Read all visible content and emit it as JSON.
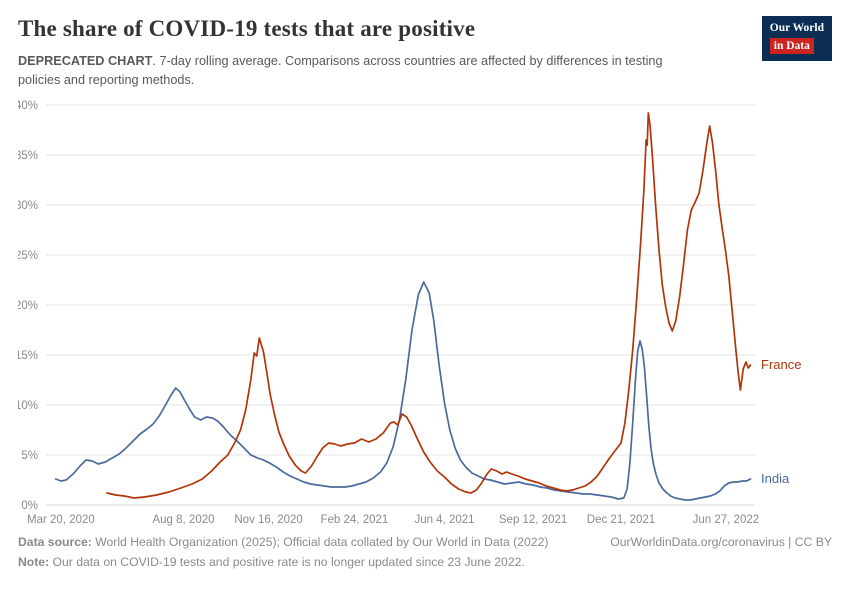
{
  "header": {
    "title": "The share of COVID-19 tests that are positive",
    "subtitle_bold": "DEPRECATED CHART",
    "subtitle_rest": ". 7-day rolling average. Comparisons across countries are affected by differences in testing policies and reporting methods.",
    "logo": {
      "line1": "Our World",
      "line2": "in Data",
      "bg_color": "#0d2e54",
      "accent_color": "#cb2421"
    }
  },
  "chart_data": {
    "type": "line",
    "title": "The share of COVID-19 tests that are positive",
    "subtitle": "7-day rolling average. Comparisons across countries are affected by differences in testing policies and reporting methods.",
    "ylim": [
      0,
      40
    ],
    "y_ticks": [
      0,
      5,
      10,
      15,
      20,
      25,
      30,
      35,
      40
    ],
    "y_tick_suffix": "%",
    "grid": true,
    "legend_position": "end-of-line-labels",
    "x_axis": {
      "ticks": [
        {
          "date": "2020-03-20",
          "label": "Mar 20, 2020",
          "pos": 0.021
        },
        {
          "date": "2020-08-08",
          "label": "Aug 8, 2020",
          "pos": 0.194
        },
        {
          "date": "2020-11-16",
          "label": "Nov 16, 2020",
          "pos": 0.314
        },
        {
          "date": "2021-02-24",
          "label": "Feb 24, 2021",
          "pos": 0.435
        },
        {
          "date": "2021-06-04",
          "label": "Jun 4, 2021",
          "pos": 0.562
        },
        {
          "date": "2021-09-12",
          "label": "Sep 12, 2021",
          "pos": 0.687
        },
        {
          "date": "2021-12-21",
          "label": "Dec 21, 2021",
          "pos": 0.811
        },
        {
          "date": "2022-06-27",
          "label": "Jun 27, 2022",
          "pos": 0.959
        }
      ]
    },
    "series": [
      {
        "name": "India",
        "color": "#4C6A9C",
        "points": [
          [
            "2020-03-14",
            2.6
          ],
          [
            "2020-03-20",
            2.4
          ],
          [
            "2020-03-26",
            2.5
          ],
          [
            "2020-04-03",
            3.1
          ],
          [
            "2020-04-11",
            3.9
          ],
          [
            "2020-04-18",
            4.5
          ],
          [
            "2020-04-25",
            4.4
          ],
          [
            "2020-05-02",
            4.1
          ],
          [
            "2020-05-10",
            4.3
          ],
          [
            "2020-05-18",
            4.7
          ],
          [
            "2020-05-26",
            5.1
          ],
          [
            "2020-06-03",
            5.7
          ],
          [
            "2020-06-11",
            6.4
          ],
          [
            "2020-06-19",
            7.1
          ],
          [
            "2020-06-27",
            7.6
          ],
          [
            "2020-07-04",
            8.1
          ],
          [
            "2020-07-11",
            8.9
          ],
          [
            "2020-07-17",
            9.8
          ],
          [
            "2020-07-24",
            10.9
          ],
          [
            "2020-07-30",
            11.7
          ],
          [
            "2020-08-04",
            11.3
          ],
          [
            "2020-08-09",
            10.5
          ],
          [
            "2020-08-15",
            9.6
          ],
          [
            "2020-08-21",
            8.8
          ],
          [
            "2020-08-28",
            8.5
          ],
          [
            "2020-09-04",
            8.8
          ],
          [
            "2020-09-11",
            8.7
          ],
          [
            "2020-09-17",
            8.4
          ],
          [
            "2020-09-24",
            7.8
          ],
          [
            "2020-10-02",
            7.0
          ],
          [
            "2020-10-10",
            6.4
          ],
          [
            "2020-10-18",
            5.7
          ],
          [
            "2020-10-26",
            5.0
          ],
          [
            "2020-11-03",
            4.7
          ],
          [
            "2020-11-10",
            4.5
          ],
          [
            "2020-11-17",
            4.2
          ],
          [
            "2020-11-25",
            3.8
          ],
          [
            "2020-12-03",
            3.3
          ],
          [
            "2020-12-11",
            2.9
          ],
          [
            "2020-12-19",
            2.6
          ],
          [
            "2020-12-27",
            2.3
          ],
          [
            "2021-01-04",
            2.1
          ],
          [
            "2021-01-12",
            2.0
          ],
          [
            "2021-01-20",
            1.9
          ],
          [
            "2021-01-28",
            1.8
          ],
          [
            "2021-02-05",
            1.8
          ],
          [
            "2021-02-13",
            1.8
          ],
          [
            "2021-02-21",
            1.9
          ],
          [
            "2021-03-01",
            2.1
          ],
          [
            "2021-03-09",
            2.3
          ],
          [
            "2021-03-17",
            2.7
          ],
          [
            "2021-03-25",
            3.3
          ],
          [
            "2021-04-01",
            4.2
          ],
          [
            "2021-04-08",
            5.8
          ],
          [
            "2021-04-15",
            8.5
          ],
          [
            "2021-04-22",
            12.5
          ],
          [
            "2021-04-29",
            17.5
          ],
          [
            "2021-05-06",
            21.0
          ],
          [
            "2021-05-12",
            22.3
          ],
          [
            "2021-05-18",
            21.2
          ],
          [
            "2021-05-23",
            18.5
          ],
          [
            "2021-05-29",
            14.0
          ],
          [
            "2021-06-04",
            10.2
          ],
          [
            "2021-06-10",
            7.5
          ],
          [
            "2021-06-16",
            5.7
          ],
          [
            "2021-06-22",
            4.5
          ],
          [
            "2021-06-28",
            3.8
          ],
          [
            "2021-07-05",
            3.2
          ],
          [
            "2021-07-12",
            2.9
          ],
          [
            "2021-07-19",
            2.6
          ],
          [
            "2021-07-26",
            2.5
          ],
          [
            "2021-08-03",
            2.3
          ],
          [
            "2021-08-11",
            2.1
          ],
          [
            "2021-08-19",
            2.2
          ],
          [
            "2021-08-27",
            2.3
          ],
          [
            "2021-09-04",
            2.1
          ],
          [
            "2021-09-12",
            2.0
          ],
          [
            "2021-09-20",
            1.8
          ],
          [
            "2021-09-28",
            1.7
          ],
          [
            "2021-10-06",
            1.5
          ],
          [
            "2021-10-14",
            1.4
          ],
          [
            "2021-10-22",
            1.3
          ],
          [
            "2021-10-31",
            1.2
          ],
          [
            "2021-11-08",
            1.1
          ],
          [
            "2021-11-16",
            1.1
          ],
          [
            "2021-11-24",
            1.0
          ],
          [
            "2021-12-02",
            0.9
          ],
          [
            "2021-12-10",
            0.8
          ],
          [
            "2021-12-18",
            0.6
          ],
          [
            "2021-12-26",
            0.7
          ],
          [
            "2022-01-01",
            1.6
          ],
          [
            "2022-01-06",
            4.2
          ],
          [
            "2022-01-11",
            8.2
          ],
          [
            "2022-01-16",
            12.6
          ],
          [
            "2022-01-20",
            15.4
          ],
          [
            "2022-01-24",
            16.4
          ],
          [
            "2022-01-28",
            15.6
          ],
          [
            "2022-02-01",
            13.8
          ],
          [
            "2022-02-05",
            10.8
          ],
          [
            "2022-02-09",
            7.8
          ],
          [
            "2022-02-13",
            5.6
          ],
          [
            "2022-02-17",
            4.1
          ],
          [
            "2022-02-22",
            3.0
          ],
          [
            "2022-02-27",
            2.2
          ],
          [
            "2022-03-06",
            1.6
          ],
          [
            "2022-03-13",
            1.2
          ],
          [
            "2022-03-20",
            0.9
          ],
          [
            "2022-03-28",
            0.7
          ],
          [
            "2022-04-06",
            0.6
          ],
          [
            "2022-04-15",
            0.5
          ],
          [
            "2022-04-24",
            0.5
          ],
          [
            "2022-05-03",
            0.6
          ],
          [
            "2022-05-12",
            0.7
          ],
          [
            "2022-05-21",
            0.8
          ],
          [
            "2022-05-30",
            0.9
          ],
          [
            "2022-06-08",
            1.1
          ],
          [
            "2022-06-16",
            1.4
          ],
          [
            "2022-06-24",
            1.9
          ],
          [
            "2022-07-02",
            2.2
          ],
          [
            "2022-07-10",
            2.3
          ],
          [
            "2022-07-18",
            2.3
          ],
          [
            "2022-07-26",
            2.4
          ],
          [
            "2022-08-03",
            2.4
          ],
          [
            "2022-08-10",
            2.6
          ]
        ]
      },
      {
        "name": "France",
        "color": "#B13507",
        "points": [
          [
            "2020-05-12",
            1.2
          ],
          [
            "2020-05-22",
            1.0
          ],
          [
            "2020-06-01",
            0.9
          ],
          [
            "2020-06-12",
            0.7
          ],
          [
            "2020-06-24",
            0.8
          ],
          [
            "2020-07-08",
            1.0
          ],
          [
            "2020-07-22",
            1.3
          ],
          [
            "2020-08-05",
            1.7
          ],
          [
            "2020-08-18",
            2.1
          ],
          [
            "2020-08-30",
            2.6
          ],
          [
            "2020-09-10",
            3.4
          ],
          [
            "2020-09-20",
            4.3
          ],
          [
            "2020-09-29",
            5.0
          ],
          [
            "2020-10-07",
            6.2
          ],
          [
            "2020-10-14",
            7.5
          ],
          [
            "2020-10-20",
            9.5
          ],
          [
            "2020-10-26",
            12.5
          ],
          [
            "2020-10-30",
            15.2
          ],
          [
            "2020-11-02",
            14.9
          ],
          [
            "2020-11-05",
            16.7
          ],
          [
            "2020-11-10",
            15.3
          ],
          [
            "2020-11-14",
            13.2
          ],
          [
            "2020-11-18",
            11.0
          ],
          [
            "2020-11-23",
            9.0
          ],
          [
            "2020-11-28",
            7.3
          ],
          [
            "2020-12-04",
            6.0
          ],
          [
            "2020-12-10",
            4.9
          ],
          [
            "2020-12-17",
            4.0
          ],
          [
            "2020-12-24",
            3.4
          ],
          [
            "2020-12-29",
            3.2
          ],
          [
            "2021-01-05",
            3.9
          ],
          [
            "2021-01-12",
            4.9
          ],
          [
            "2021-01-18",
            5.7
          ],
          [
            "2021-01-25",
            6.2
          ],
          [
            "2021-02-01",
            6.1
          ],
          [
            "2021-02-08",
            5.9
          ],
          [
            "2021-02-16",
            6.1
          ],
          [
            "2021-02-24",
            6.2
          ],
          [
            "2021-03-04",
            6.6
          ],
          [
            "2021-03-12",
            6.3
          ],
          [
            "2021-03-20",
            6.6
          ],
          [
            "2021-03-28",
            7.2
          ],
          [
            "2021-04-05",
            8.2
          ],
          [
            "2021-04-09",
            8.3
          ],
          [
            "2021-04-13",
            8.0
          ],
          [
            "2021-04-18",
            9.1
          ],
          [
            "2021-04-23",
            8.8
          ],
          [
            "2021-04-28",
            8.0
          ],
          [
            "2021-05-05",
            6.6
          ],
          [
            "2021-05-12",
            5.3
          ],
          [
            "2021-05-19",
            4.3
          ],
          [
            "2021-05-27",
            3.4
          ],
          [
            "2021-06-04",
            2.8
          ],
          [
            "2021-06-12",
            2.1
          ],
          [
            "2021-06-20",
            1.6
          ],
          [
            "2021-06-28",
            1.3
          ],
          [
            "2021-07-04",
            1.2
          ],
          [
            "2021-07-10",
            1.5
          ],
          [
            "2021-07-16",
            2.2
          ],
          [
            "2021-07-22",
            3.1
          ],
          [
            "2021-07-27",
            3.6
          ],
          [
            "2021-08-02",
            3.4
          ],
          [
            "2021-08-08",
            3.1
          ],
          [
            "2021-08-13",
            3.3
          ],
          [
            "2021-08-19",
            3.1
          ],
          [
            "2021-08-26",
            2.9
          ],
          [
            "2021-09-03",
            2.6
          ],
          [
            "2021-09-11",
            2.4
          ],
          [
            "2021-09-19",
            2.2
          ],
          [
            "2021-09-27",
            1.9
          ],
          [
            "2021-10-05",
            1.7
          ],
          [
            "2021-10-13",
            1.5
          ],
          [
            "2021-10-20",
            1.4
          ],
          [
            "2021-10-27",
            1.5
          ],
          [
            "2021-11-03",
            1.7
          ],
          [
            "2021-11-10",
            1.9
          ],
          [
            "2021-11-17",
            2.3
          ],
          [
            "2021-11-24",
            2.9
          ],
          [
            "2021-12-01",
            3.8
          ],
          [
            "2021-12-08",
            4.7
          ],
          [
            "2021-12-14",
            5.4
          ],
          [
            "2021-12-21",
            6.2
          ],
          [
            "2021-12-28",
            8.2
          ],
          [
            "2022-01-04",
            11.5
          ],
          [
            "2022-01-11",
            15.5
          ],
          [
            "2022-01-18",
            20.5
          ],
          [
            "2022-01-25",
            26.0
          ],
          [
            "2022-01-31",
            31.5
          ],
          [
            "2022-02-02",
            34.0
          ],
          [
            "2022-02-04",
            36.5
          ],
          [
            "2022-02-06",
            36.0
          ],
          [
            "2022-02-08",
            39.2
          ],
          [
            "2022-02-11",
            38.0
          ],
          [
            "2022-02-15",
            35.0
          ],
          [
            "2022-02-21",
            30.0
          ],
          [
            "2022-02-27",
            25.5
          ],
          [
            "2022-03-05",
            22.0
          ],
          [
            "2022-03-11",
            19.8
          ],
          [
            "2022-03-17",
            18.2
          ],
          [
            "2022-03-23",
            17.4
          ],
          [
            "2022-03-29",
            18.4
          ],
          [
            "2022-04-05",
            20.8
          ],
          [
            "2022-04-12",
            24.0
          ],
          [
            "2022-04-19",
            27.5
          ],
          [
            "2022-04-26",
            29.5
          ],
          [
            "2022-05-03",
            30.3
          ],
          [
            "2022-05-10",
            31.2
          ],
          [
            "2022-05-17",
            33.5
          ],
          [
            "2022-05-24",
            36.3
          ],
          [
            "2022-05-29",
            37.9
          ],
          [
            "2022-06-03",
            36.2
          ],
          [
            "2022-06-09",
            33.2
          ],
          [
            "2022-06-14",
            30.2
          ],
          [
            "2022-06-20",
            27.8
          ],
          [
            "2022-06-26",
            25.5
          ],
          [
            "2022-07-02",
            23.0
          ],
          [
            "2022-07-08",
            19.5
          ],
          [
            "2022-07-14",
            16.0
          ],
          [
            "2022-07-19",
            13.2
          ],
          [
            "2022-07-23",
            11.5
          ],
          [
            "2022-07-28",
            13.6
          ],
          [
            "2022-08-02",
            14.3
          ],
          [
            "2022-08-06",
            13.7
          ],
          [
            "2022-08-10",
            14.0
          ]
        ]
      }
    ]
  },
  "footer": {
    "datasource_label": "Data source:",
    "datasource_text": " World Health Organization (2025); Official data collated by Our World in Data (2022)",
    "credit_link": "OurWorldinData.org/coronavirus",
    "credit_sep": " | ",
    "credit_license": "CC BY",
    "note_label": "Note:",
    "note_text": " Our data on COVID-19 tests and positive rate is no longer updated since 23 June 2022."
  }
}
